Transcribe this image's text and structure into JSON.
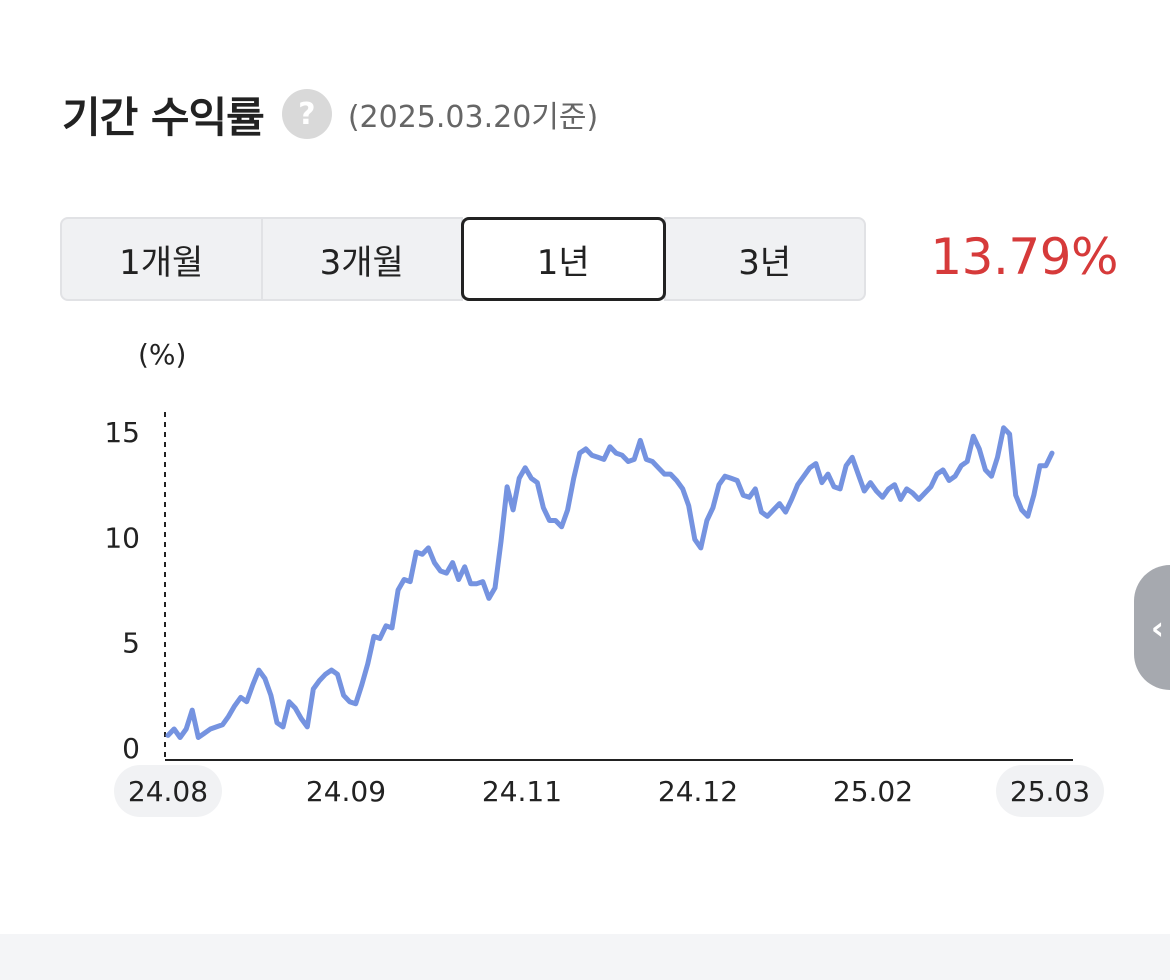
{
  "header": {
    "title": "기간 수익률",
    "help_icon": "question-mark-icon",
    "help_glyph": "?",
    "basis": "(2025.03.20기준)"
  },
  "period_tabs": [
    {
      "label": "1개월",
      "active": false
    },
    {
      "label": "3개월",
      "active": false
    },
    {
      "label": "1년",
      "active": true
    },
    {
      "label": "3년",
      "active": false
    }
  ],
  "return_value": "13.79%",
  "colors": {
    "line": "#7593e0",
    "return_positive": "#d63a3a"
  },
  "side_handle": {
    "icon": "chevron-left-icon",
    "glyph": "‹"
  },
  "chart_data": {
    "type": "line",
    "ylabel": "(%)",
    "ylim": [
      0,
      15
    ],
    "yticks": [
      "0",
      "5",
      "10",
      "15"
    ],
    "xticks": [
      "24.08",
      "24.09",
      "24.11",
      "24.12",
      "25.02",
      "25.03"
    ],
    "highlighted_xticks": [
      "24.08",
      "25.03"
    ],
    "series": [
      {
        "values": [
          0.6,
          0.9,
          0.5,
          0.9,
          1.8,
          0.5,
          0.7,
          0.9,
          1.0,
          1.1,
          1.5,
          2.0,
          2.4,
          2.2,
          3.0,
          3.7,
          3.3,
          2.5,
          1.2,
          1.0,
          2.2,
          1.9,
          1.4,
          1.0,
          2.8,
          3.2,
          3.5,
          3.7,
          3.5,
          2.5,
          2.2,
          2.1,
          3.0,
          4.0,
          5.3,
          5.2,
          5.8,
          5.7,
          7.5,
          8.0,
          7.9,
          9.3,
          9.2,
          9.5,
          8.8,
          8.4,
          8.3,
          8.8,
          8.0,
          8.6,
          7.8,
          7.8,
          7.9,
          7.1,
          7.6,
          9.8,
          12.4,
          11.3,
          12.8,
          13.3,
          12.8,
          12.6,
          11.4,
          10.8,
          10.8,
          10.5,
          11.3,
          12.8,
          14.0,
          14.2,
          13.9,
          13.8,
          13.7,
          14.3,
          14.0,
          13.9,
          13.6,
          13.7,
          14.6,
          13.7,
          13.6,
          13.3,
          13.0,
          13.0,
          12.7,
          12.3,
          11.5,
          9.9,
          9.5,
          10.8,
          11.4,
          12.5,
          12.9,
          12.8,
          12.7,
          12.0,
          11.9,
          12.3,
          11.2,
          11.0,
          11.3,
          11.6,
          11.2,
          11.8,
          12.5,
          12.9,
          13.3,
          13.5,
          12.6,
          13.0,
          12.4,
          12.3,
          13.4,
          13.8,
          13.0,
          12.2,
          12.6,
          12.2,
          11.9,
          12.3,
          12.5,
          11.8,
          12.3,
          12.1,
          11.8,
          12.1,
          12.4,
          13.0,
          13.2,
          12.7,
          12.9,
          13.4,
          13.6,
          14.8,
          14.2,
          13.2,
          12.9,
          13.8,
          15.2,
          14.9,
          12.0,
          11.3,
          11.0,
          12.0,
          13.4,
          13.4,
          14.0
        ]
      }
    ]
  }
}
